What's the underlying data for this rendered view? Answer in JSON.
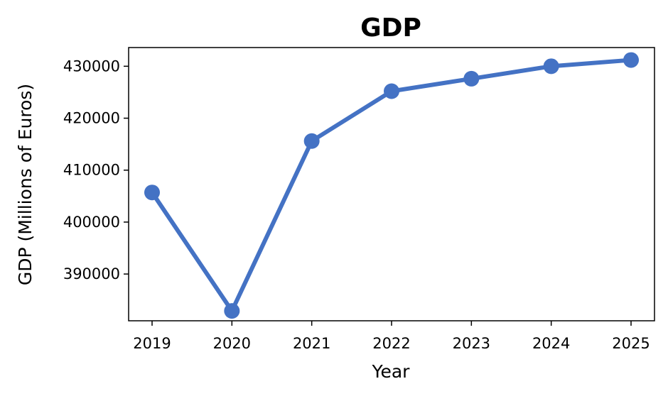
{
  "chart_data": {
    "type": "line",
    "title": "GDP",
    "xlabel": "Year",
    "ylabel": "GDP (Millions of Euros)",
    "x": [
      "2019",
      "2020",
      "2021",
      "2022",
      "2023",
      "2024",
      "2025"
    ],
    "series": [
      {
        "values": [
          405700,
          382900,
          415600,
          425200,
          427600,
          430000,
          431200
        ],
        "color": "#4472c4"
      }
    ],
    "yticks": [
      390000,
      400000,
      410000,
      420000,
      430000
    ],
    "yticklabels": [
      "390000",
      "400000",
      "410000",
      "420000",
      "430000"
    ],
    "ylim": [
      381000,
      433600
    ],
    "grid": false,
    "legend": "none"
  }
}
